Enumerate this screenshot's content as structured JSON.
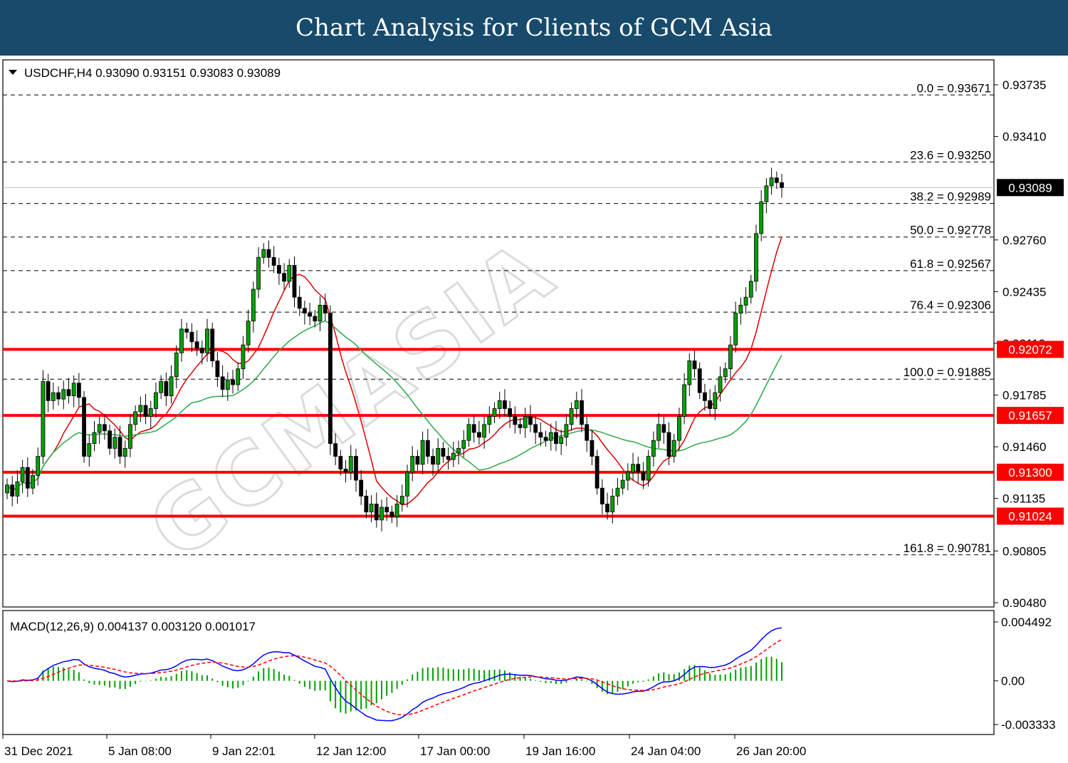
{
  "banner": {
    "title": "Chart Analysis for Clients of GCM Asia"
  },
  "chart_data": {
    "type": "candlestick",
    "symbol_line": "USDCHF,H4  0.93090 0.93151 0.93083 0.93089",
    "ohlc": {
      "open": 0.9309,
      "high": 0.93151,
      "low": 0.93083,
      "close": 0.93089
    },
    "current_price": "0.93089",
    "y_range": [
      0.9034,
      0.939
    ],
    "y_ticks": [
      "0.93735",
      "0.93410",
      "0.92760",
      "0.92435",
      "0.92110",
      "0.91785",
      "0.91460",
      "0.91135",
      "0.90805",
      "0.90480"
    ],
    "x_ticks": [
      "31 Dec 2021",
      "5 Jan 08:00",
      "9 Jan 22:01",
      "12 Jan 12:00",
      "17 Jan 00:00",
      "19 Jan 16:00",
      "24 Jan 04:00",
      "26 Jan 20:00"
    ],
    "fibonacci": [
      {
        "level": "0.0",
        "value": 0.93671,
        "label": "0.0 = 0.93671"
      },
      {
        "level": "23.6",
        "value": 0.9325,
        "label": "23.6 = 0.93250"
      },
      {
        "level": "38.2",
        "value": 0.92989,
        "label": "38.2 = 0.92989"
      },
      {
        "level": "50.0",
        "value": 0.92778,
        "label": "50.0 = 0.92778"
      },
      {
        "level": "61.8",
        "value": 0.92567,
        "label": "61.8 = 0.92567"
      },
      {
        "level": "76.4",
        "value": 0.92306,
        "label": "76.4 = 0.92306"
      },
      {
        "level": "100.0",
        "value": 0.91885,
        "label": "100.0 = 0.91885"
      },
      {
        "level": "161.8",
        "value": 0.90781,
        "label": "161.8 = 0.90781"
      }
    ],
    "support_resistance": [
      {
        "value": 0.92072,
        "label": "0.92072"
      },
      {
        "value": 0.91657,
        "label": "0.91657"
      },
      {
        "value": 0.913,
        "label": "0.91300"
      },
      {
        "value": 0.91024,
        "label": "0.91024"
      }
    ],
    "macd": {
      "label": "MACD(12,26,9) 0.004137 0.003120 0.001017",
      "y_range": [
        -0.0038,
        0.0053
      ],
      "y_ticks": [
        "0.004492",
        "0.00",
        "-0.003333"
      ]
    },
    "watermark": "GCMASIA"
  }
}
